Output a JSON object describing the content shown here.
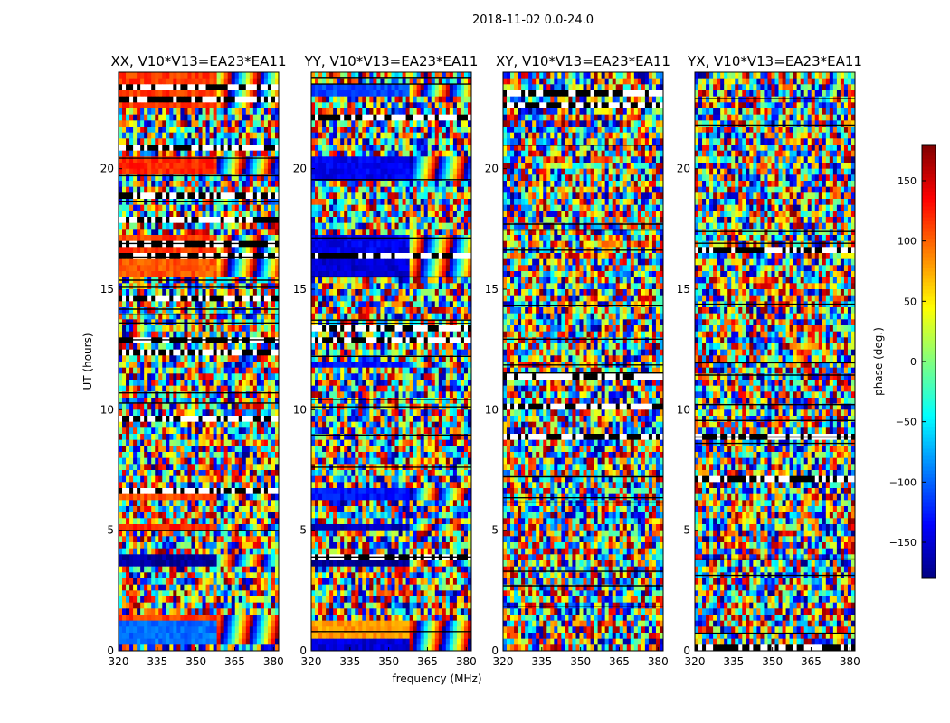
{
  "chart_data": {
    "type": "heatmap",
    "suptitle": "2018-11-02 0.0-24.0",
    "xlabel": "frequency (MHz)",
    "ylabel": "UT (hours)",
    "xlim": [
      320,
      382
    ],
    "ylim": [
      0,
      24
    ],
    "xticks": [
      320,
      335,
      350,
      365,
      380
    ],
    "yticks": [
      0,
      5,
      10,
      15,
      20
    ],
    "panels": [
      {
        "title": "XX, V10*V13=EA23*EA11",
        "baseline_phase": 110,
        "coherent_bands": [
          [
            0.2,
            1.2,
            -95
          ],
          [
            1.2,
            1.5,
            115
          ],
          [
            3.4,
            3.9,
            -170
          ],
          [
            4.9,
            5.3,
            125
          ],
          [
            6.2,
            6.8,
            110
          ],
          [
            15.5,
            16.2,
            105
          ],
          [
            16.2,
            17.3,
            115
          ],
          [
            19.8,
            20.5,
            120
          ],
          [
            22.4,
            23.9,
            115
          ]
        ]
      },
      {
        "title": "YY, V10*V13=EA23*EA11",
        "baseline_phase": -120,
        "coherent_bands": [
          [
            0.0,
            0.6,
            -150
          ],
          [
            0.6,
            1.3,
            80
          ],
          [
            3.4,
            3.8,
            -175
          ],
          [
            4.9,
            5.2,
            -160
          ],
          [
            6.2,
            6.8,
            -130
          ],
          [
            11.7,
            12.0,
            -130
          ],
          [
            15.5,
            16.2,
            -150
          ],
          [
            16.2,
            17.3,
            -140
          ],
          [
            19.6,
            20.5,
            -140
          ],
          [
            23.0,
            23.6,
            -110
          ]
        ]
      },
      {
        "title": "XY, V10*V13=EA23*EA11",
        "baseline_phase": 0,
        "coherent_bands": []
      },
      {
        "title": "YX, V10*V13=EA23*EA11",
        "baseline_phase": 0,
        "coherent_bands": []
      }
    ],
    "colorbar": {
      "label": "phase (deg.)",
      "vmin": -180,
      "vmax": 180,
      "ticks": [
        150,
        100,
        50,
        0,
        -50,
        -100,
        -150
      ],
      "tick_labels": [
        "150",
        "100",
        "50",
        "0",
        "−50",
        "−100",
        "−150"
      ]
    }
  }
}
